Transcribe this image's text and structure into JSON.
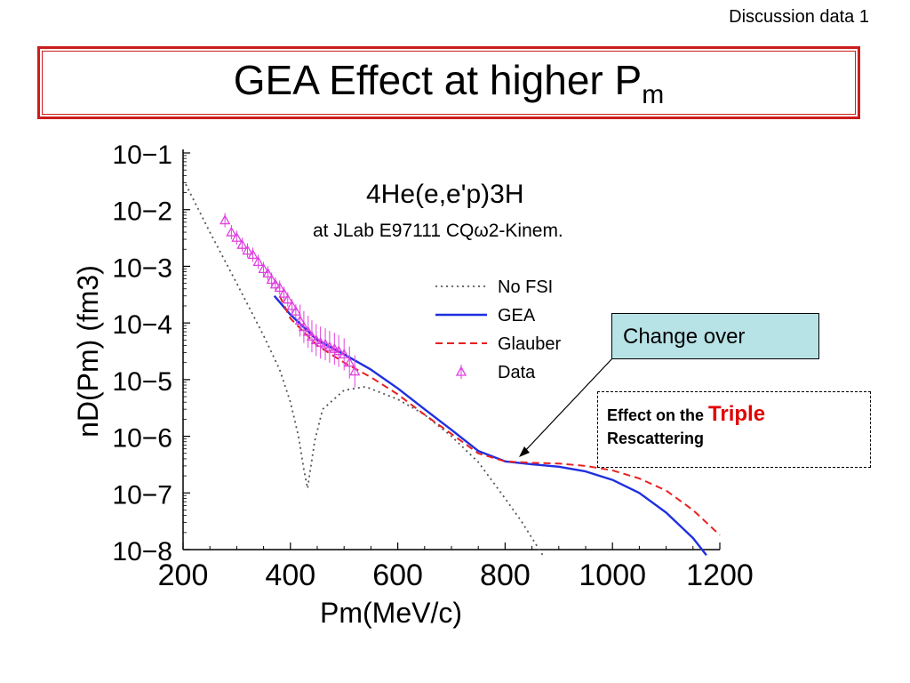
{
  "header": {
    "label": "Discussion data 1"
  },
  "title": {
    "main": "GEA Effect at higher P",
    "sub": "m"
  },
  "callouts": {
    "change_over": "Change over",
    "effect_prefix": "Effect on the ",
    "effect_accent": "Triple",
    "effect_line2": "Rescattering"
  },
  "colors": {
    "title_border": "#cc1c1c",
    "gea": "#1f2fe0",
    "glauber": "#e82020",
    "nofsi": "#555555",
    "data": "#e040e0",
    "callout_fill": "#b8e3e6",
    "accent_text": "#e00000"
  },
  "chart_data": {
    "type": "line",
    "title": "4He(e,e'p)3H",
    "subtitle": "at JLab E97111 CQω2-Kinem.",
    "xlabel": "Pm(MeV/c)",
    "ylabel": "nD(Pm) (fm3)",
    "xlim": [
      200,
      1200
    ],
    "ylim_log10": [
      -8,
      -1
    ],
    "y_scale": "log",
    "grid": false,
    "legend_position": "right",
    "x_ticks": [
      200,
      400,
      600,
      800,
      1000,
      1200
    ],
    "y_ticks": [
      {
        "exp": -1,
        "label": "10−1"
      },
      {
        "exp": -2,
        "label": "10−2"
      },
      {
        "exp": -3,
        "label": "10−3"
      },
      {
        "exp": -4,
        "label": "10−4"
      },
      {
        "exp": -5,
        "label": "10−5"
      },
      {
        "exp": -6,
        "label": "10−6"
      },
      {
        "exp": -7,
        "label": "10−7"
      },
      {
        "exp": -8,
        "label": "10−8"
      }
    ],
    "series": [
      {
        "name": "No FSI",
        "style": "dotted",
        "x": [
          205,
          250,
          300,
          350,
          380,
          400,
          415,
          425,
          432,
          445,
          460,
          500,
          540,
          600,
          650,
          700,
          750,
          800,
          830,
          850,
          870
        ],
        "y": [
          0.028,
          0.004,
          0.0005,
          6e-05,
          1.5e-05,
          4e-06,
          1e-06,
          2.6e-07,
          1.2e-07,
          8e-07,
          3e-06,
          6.5e-06,
          7.5e-06,
          4.5e-06,
          2.4e-06,
          1e-06,
          3.5e-07,
          8e-08,
          3.2e-08,
          1.6e-08,
          8e-09
        ]
      },
      {
        "name": "GEA",
        "style": "solid",
        "x": [
          370,
          400,
          450,
          500,
          550,
          600,
          650,
          700,
          750,
          800,
          850,
          900,
          950,
          1000,
          1050,
          1100,
          1150,
          1175
        ],
        "y": [
          0.0003,
          0.00014,
          5e-05,
          2.8e-05,
          1.5e-05,
          7e-06,
          3e-06,
          1.3e-06,
          5.5e-07,
          3.6e-07,
          3.2e-07,
          2.9e-07,
          2.4e-07,
          1.7e-07,
          1e-07,
          4.5e-08,
          1.6e-08,
          8e-09
        ]
      },
      {
        "name": "Glauber",
        "style": "dashed",
        "x": [
          380,
          400,
          450,
          500,
          550,
          600,
          650,
          700,
          750,
          800,
          850,
          900,
          950,
          1000,
          1050,
          1100,
          1150,
          1200
        ],
        "y": [
          0.0003,
          0.00012,
          4e-05,
          2e-05,
          1.1e-05,
          5.5e-06,
          2.4e-06,
          1.1e-06,
          5e-07,
          3.6e-07,
          3.4e-07,
          3.3e-07,
          3e-07,
          2.5e-07,
          1.8e-07,
          1.1e-07,
          5e-08,
          1.8e-08
        ]
      },
      {
        "name": "Data",
        "style": "markers",
        "x": [
          278,
          290,
          300,
          310,
          320,
          330,
          340,
          350,
          358,
          365,
          372,
          380,
          388,
          395,
          403,
          410,
          418,
          425,
          433,
          440,
          448,
          456,
          465,
          473,
          482,
          490,
          500,
          510,
          520
        ],
        "y": [
          0.0065,
          0.004,
          0.0032,
          0.0024,
          0.0019,
          0.0016,
          0.0012,
          0.0009,
          0.00075,
          0.00058,
          0.00048,
          0.00042,
          0.00033,
          0.00026,
          0.0002,
          0.00016,
          0.00011,
          8.5e-05,
          7e-05,
          5.8e-05,
          5e-05,
          4.5e-05,
          4.2e-05,
          3.8e-05,
          3.5e-05,
          3.2e-05,
          2.8e-05,
          2e-05,
          1.4e-05
        ]
      }
    ]
  }
}
